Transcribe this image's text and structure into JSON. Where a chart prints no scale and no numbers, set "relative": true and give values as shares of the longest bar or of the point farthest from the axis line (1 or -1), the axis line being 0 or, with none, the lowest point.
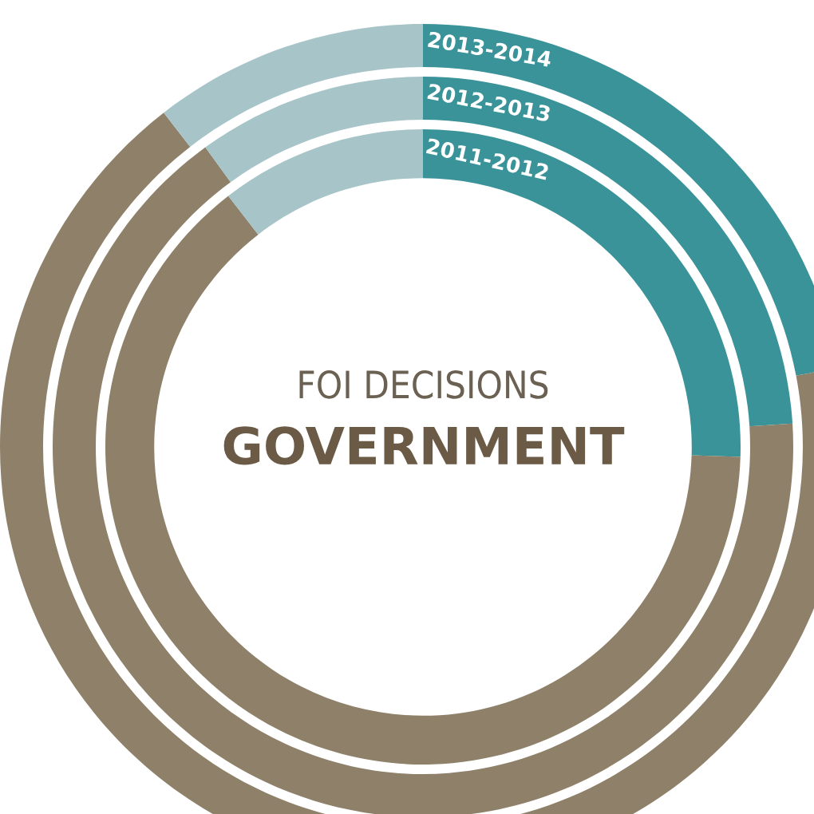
{
  "chart_data": {
    "type": "donut",
    "title": "FOI DECISIONS",
    "subtitle": "GOVERNMENT",
    "relative": true,
    "categories": [
      null,
      null,
      null
    ],
    "series": [
      {
        "name": "2013-2014",
        "values": [
          22,
          67.5,
          10.5
        ],
        "colors": [
          "#3a9398",
          "#8e8069",
          "#a7c4c8"
        ]
      },
      {
        "name": "2012-2013",
        "values": [
          24,
          66,
          10
        ],
        "colors": [
          "#3a9398",
          "#8e8069",
          "#a7c4c8"
        ]
      },
      {
        "name": "2011-2012",
        "values": [
          25.5,
          64,
          10.5
        ],
        "colors": [
          "#3a9398",
          "#8e8069",
          "#a7c4c8"
        ]
      }
    ]
  }
}
